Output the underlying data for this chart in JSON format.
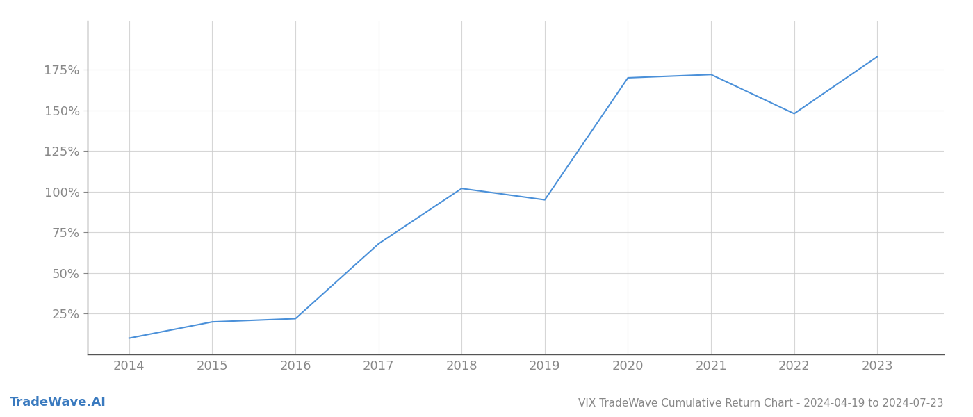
{
  "x_values": [
    2014,
    2015,
    2016,
    2017,
    2018,
    2019,
    2020,
    2021,
    2022,
    2023
  ],
  "y_values": [
    10,
    20,
    22,
    68,
    102,
    95,
    170,
    172,
    148,
    183
  ],
  "line_color": "#4a90d9",
  "line_width": 1.5,
  "title": "VIX TradeWave Cumulative Return Chart - 2024-04-19 to 2024-07-23",
  "title_fontsize": 11,
  "watermark": "TradeWave.AI",
  "watermark_fontsize": 13,
  "watermark_color": "#3a7abf",
  "xlim": [
    2013.5,
    2023.8
  ],
  "ylim": [
    0,
    205
  ],
  "yticks": [
    25,
    50,
    75,
    100,
    125,
    150,
    175
  ],
  "xticks": [
    2014,
    2015,
    2016,
    2017,
    2018,
    2019,
    2020,
    2021,
    2022,
    2023
  ],
  "grid_color": "#cccccc",
  "grid_alpha": 0.8,
  "background_color": "#ffffff",
  "tick_color": "#888888",
  "tick_fontsize": 13,
  "spine_color": "#555555",
  "left_spine_color": "#555555"
}
